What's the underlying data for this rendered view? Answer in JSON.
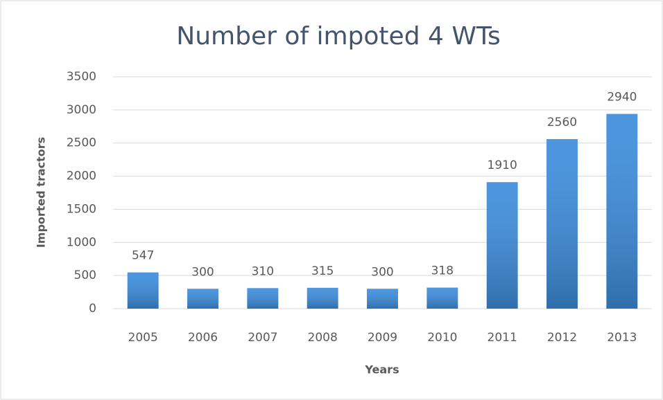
{
  "chart_data": {
    "type": "bar",
    "title": "Number of impoted 4 WTs",
    "x_label": "Years",
    "y_label": "Imported tractors",
    "categories": [
      "2005",
      "2006",
      "2007",
      "2008",
      "2009",
      "2010",
      "2011",
      "2012",
      "2013"
    ],
    "values": [
      547,
      300,
      310,
      315,
      300,
      318,
      1910,
      2560,
      2940
    ],
    "color": "#3d8ddc",
    "ylim": [
      0,
      3500
    ],
    "yticks": [
      0,
      500,
      1000,
      1500,
      2000,
      2500,
      3000,
      3500
    ],
    "grid": true
  }
}
